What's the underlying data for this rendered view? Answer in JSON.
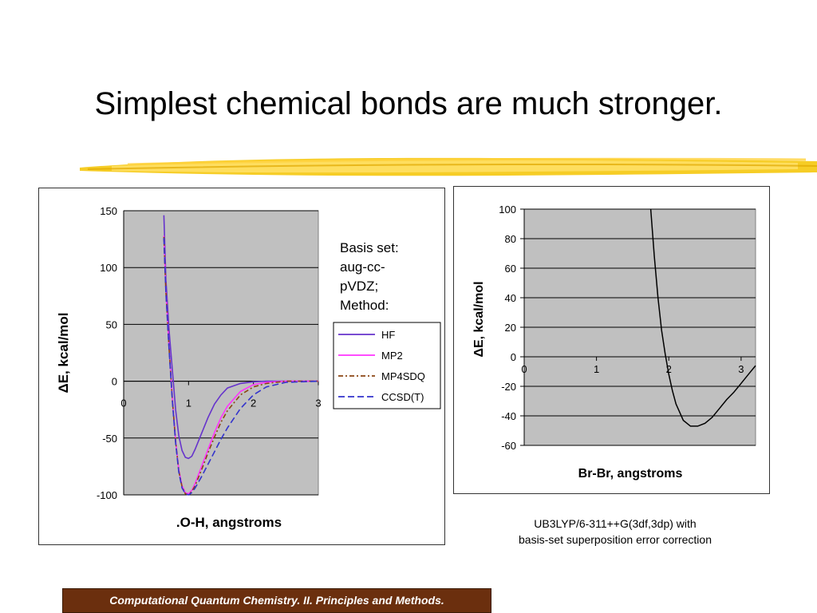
{
  "slide": {
    "title": "Simplest chemical bonds are much stronger.",
    "caption_line1": "UB3LYP/6-311++G(3df,3dp) with",
    "caption_line2": "basis-set superposition error correction",
    "footer": "Computational Quantum Chemistry.  II. Principles and Methods."
  },
  "chart_data": [
    {
      "type": "line",
      "xlabel": ".O-H, angstroms",
      "ylabel": "ΔE,  kcal/mol",
      "xlim": [
        0,
        3
      ],
      "ylim": [
        -100,
        150
      ],
      "xticks": [
        "0",
        "1",
        "2",
        "3"
      ],
      "yticks": [
        "150",
        "100",
        "50",
        "0",
        "-50",
        "-100"
      ],
      "grid": "horizontal",
      "plot_background": "#c0c0c0",
      "annotation": [
        "Basis set:",
        "aug-cc-",
        "pVDZ;",
        "Method:"
      ],
      "legend_position": "right",
      "series": [
        {
          "name": "HF",
          "color": "#6633cc",
          "dash": "solid",
          "x": [
            0.62,
            0.65,
            0.7,
            0.75,
            0.8,
            0.85,
            0.9,
            0.95,
            1.0,
            1.05,
            1.1,
            1.2,
            1.3,
            1.4,
            1.5,
            1.6,
            1.8,
            2.0,
            2.2,
            2.5,
            3.0
          ],
          "y": [
            146,
            90,
            45,
            10,
            -25,
            -48,
            -61,
            -67,
            -68,
            -66,
            -60,
            -46,
            -32,
            -20,
            -12,
            -6,
            -2,
            -0.5,
            0,
            0,
            0
          ]
        },
        {
          "name": "MP2",
          "color": "#ff33ff",
          "dash": "solid",
          "x": [
            0.62,
            0.65,
            0.7,
            0.75,
            0.8,
            0.85,
            0.9,
            0.95,
            1.0,
            1.05,
            1.1,
            1.2,
            1.3,
            1.4,
            1.5,
            1.6,
            1.8,
            2.0,
            2.2,
            2.5,
            3.0
          ],
          "y": [
            128,
            80,
            30,
            -15,
            -52,
            -78,
            -92,
            -98,
            -99,
            -96,
            -90,
            -75,
            -60,
            -45,
            -32,
            -22,
            -9,
            -3,
            -1,
            0,
            0
          ]
        },
        {
          "name": "MP4SDQ",
          "color": "#8b4513",
          "dash": "6,3,2,3",
          "x": [
            0.62,
            0.65,
            0.7,
            0.75,
            0.8,
            0.85,
            0.9,
            0.95,
            1.0,
            1.05,
            1.1,
            1.2,
            1.3,
            1.4,
            1.5,
            1.6,
            1.8,
            2.0,
            2.2,
            2.5,
            3.0
          ],
          "y": [
            127,
            79,
            29,
            -16,
            -53,
            -79,
            -93,
            -99,
            -100,
            -97,
            -92,
            -78,
            -63,
            -49,
            -36,
            -26,
            -12,
            -5,
            -2,
            0,
            0
          ]
        },
        {
          "name": "CCSD(T)",
          "color": "#3333cc",
          "dash": "8,4",
          "x": [
            0.62,
            0.65,
            0.7,
            0.75,
            0.8,
            0.85,
            0.9,
            0.95,
            1.0,
            1.05,
            1.1,
            1.2,
            1.3,
            1.4,
            1.5,
            1.6,
            1.8,
            2.0,
            2.2,
            2.5,
            3.0
          ],
          "y": [
            126,
            78,
            28,
            -17,
            -54,
            -80,
            -94,
            -99,
            -100,
            -98,
            -94,
            -84,
            -73,
            -62,
            -51,
            -41,
            -24,
            -12,
            -5,
            -1,
            0
          ]
        }
      ]
    },
    {
      "type": "line",
      "xlabel": "Br-Br, angstroms",
      "ylabel": "ΔE, kcal/mol",
      "xlim": [
        0,
        3.2
      ],
      "ylim": [
        -60,
        100
      ],
      "xticks": [
        "0",
        "1",
        "2",
        "3"
      ],
      "yticks": [
        "100",
        "80",
        "60",
        "40",
        "20",
        "0",
        "-20",
        "-40",
        "-60"
      ],
      "grid": "horizontal",
      "plot_background": "#c0c0c0",
      "series": [
        {
          "color": "#000000",
          "dash": "solid",
          "x": [
            1.75,
            1.8,
            1.85,
            1.9,
            1.95,
            2.0,
            2.05,
            2.1,
            2.2,
            2.3,
            2.4,
            2.5,
            2.6,
            2.7,
            2.8,
            2.9,
            3.0,
            3.1,
            3.2
          ],
          "y": [
            100,
            68,
            40,
            18,
            2,
            -12,
            -23,
            -32,
            -43,
            -47,
            -47,
            -45,
            -41,
            -35,
            -29,
            -24,
            -18,
            -12,
            -6
          ]
        }
      ]
    }
  ]
}
